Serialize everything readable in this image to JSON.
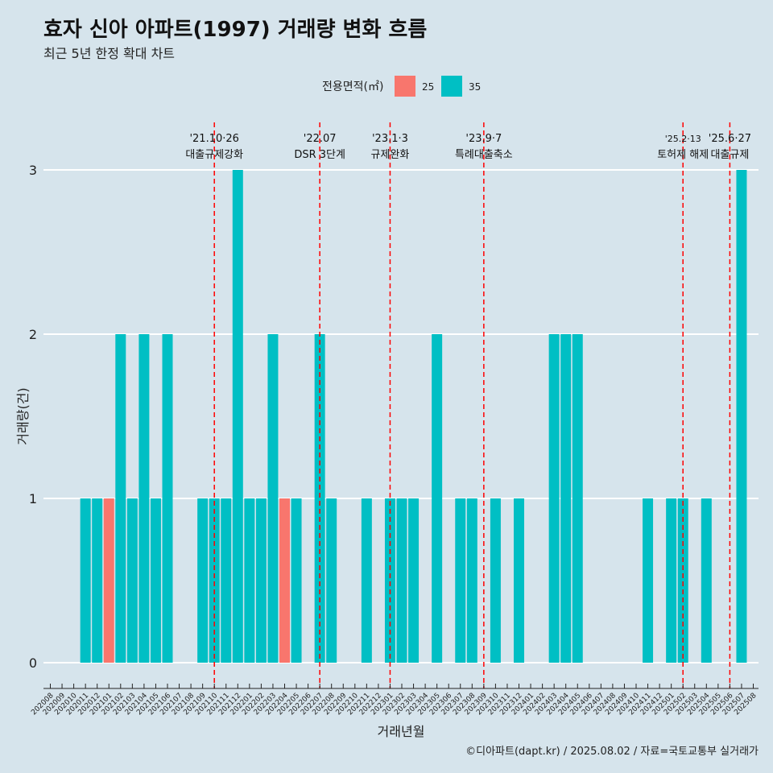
{
  "title": "효자 신아 아파트(1997) 거래량 변화 흐름",
  "subtitle": "최근 5년 한정 확대 차트",
  "caption": "©디아파트(dapt.kr) / 2025.08.02 / 자료=국토교통부 실거래가",
  "colors": {
    "s25": "#f8766d",
    "s35": "#00bfc4",
    "vline": "#ff0000",
    "grid": "#ffffff",
    "background": "#d6e4ec"
  },
  "chart_data": {
    "type": "bar",
    "stacked": true,
    "xlabel": "거래년월",
    "ylabel": "거래량(건)",
    "ylim": [
      0,
      3
    ],
    "y_ticks": [
      0,
      1,
      2,
      3
    ],
    "legend": {
      "title": "전용면적(㎡)",
      "position": "top",
      "entries": [
        "25",
        "35"
      ]
    },
    "grid": true,
    "categories": [
      "202008",
      "202009",
      "202010",
      "202011",
      "202012",
      "202101",
      "202102",
      "202103",
      "202104",
      "202105",
      "202106",
      "202107",
      "202108",
      "202109",
      "202110",
      "202111",
      "202112",
      "202201",
      "202202",
      "202203",
      "202204",
      "202205",
      "202206",
      "202207",
      "202208",
      "202209",
      "202210",
      "202211",
      "202212",
      "202301",
      "202302",
      "202303",
      "202304",
      "202305",
      "202306",
      "202307",
      "202308",
      "202309",
      "202310",
      "202311",
      "202312",
      "202401",
      "202402",
      "202403",
      "202404",
      "202405",
      "202406",
      "202407",
      "202408",
      "202409",
      "202410",
      "202411",
      "202412",
      "202501",
      "202502",
      "202503",
      "202504",
      "202505",
      "202506",
      "202507",
      "202508"
    ],
    "series": [
      {
        "name": "25",
        "values": [
          0,
          0,
          0,
          0,
          0,
          1,
          0,
          0,
          0,
          0,
          0,
          0,
          0,
          0,
          0,
          0,
          0,
          0,
          0,
          0,
          1,
          0,
          0,
          0,
          0,
          0,
          0,
          0,
          0,
          0,
          0,
          0,
          0,
          0,
          0,
          0,
          0,
          0,
          0,
          0,
          0,
          0,
          0,
          0,
          0,
          0,
          0,
          0,
          0,
          0,
          0,
          0,
          0,
          0,
          0,
          0,
          0,
          0,
          0,
          0,
          0
        ]
      },
      {
        "name": "35",
        "values": [
          0,
          0,
          0,
          1,
          1,
          0,
          2,
          1,
          2,
          1,
          2,
          0,
          0,
          1,
          1,
          1,
          3,
          1,
          1,
          2,
          0,
          1,
          0,
          2,
          1,
          0,
          0,
          1,
          0,
          1,
          1,
          1,
          0,
          2,
          0,
          1,
          1,
          0,
          1,
          0,
          1,
          0,
          0,
          2,
          2,
          2,
          0,
          0,
          0,
          0,
          0,
          1,
          0,
          1,
          1,
          0,
          1,
          0,
          0,
          3,
          0
        ]
      }
    ],
    "annotations": [
      {
        "x": "202110",
        "line1": "'21.10·26",
        "line2": "대출규제강화"
      },
      {
        "x": "202207",
        "line1": "'22.07",
        "line2": "DSR 3단계"
      },
      {
        "x": "202301",
        "line1": "'23.1·3",
        "line2": "규제완화"
      },
      {
        "x": "202309",
        "line1": "'23.9·7",
        "line2": "특례대출축소"
      },
      {
        "x": "202502",
        "line1": "'25.2·13",
        "line2": "토허제 해제"
      },
      {
        "x": "202506",
        "line1": "'25.6·27",
        "line2": "대출규제"
      }
    ]
  }
}
